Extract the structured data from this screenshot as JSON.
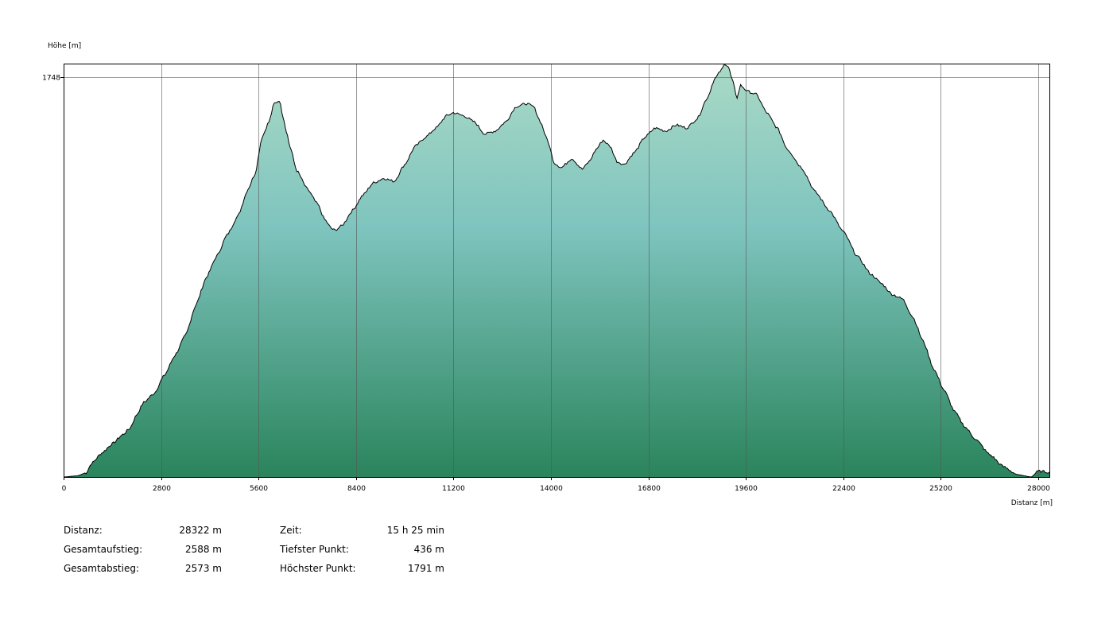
{
  "chart_data": {
    "type": "area",
    "ylabel": "Höhe [m]",
    "xlabel": "Distanz [m]",
    "xlim": [
      0,
      28322
    ],
    "ylim": [
      436,
      1791
    ],
    "x_ticks": [
      0,
      2800,
      5600,
      8400,
      11200,
      14000,
      16800,
      19600,
      22400,
      25200,
      28000
    ],
    "y_ticks": [
      1748
    ],
    "grid": true,
    "fill_colors": {
      "top": "#a9d9c6",
      "middle": "#7ec4be",
      "bottom": "#2a845c"
    },
    "line_color": "#000000",
    "grid_color": "#555555",
    "series": [
      {
        "x": [
          0,
          400,
          650,
          800,
          1100,
          1400,
          1700,
          1900,
          2100,
          2300,
          2600,
          2900,
          3200,
          3500,
          3800,
          4100,
          4400,
          4700,
          5000,
          5300,
          5500,
          5700,
          5900,
          6050,
          6200,
          6300,
          6400,
          6500,
          6700,
          7000,
          7300,
          7500,
          7700,
          7800,
          8000,
          8300,
          8600,
          8900,
          9200,
          9500,
          9800,
          10100,
          10400,
          10700,
          11000,
          11200,
          11500,
          11800,
          12100,
          12400,
          12700,
          13000,
          13300,
          13500,
          13700,
          13900,
          14100,
          14300,
          14600,
          14900,
          15100,
          15300,
          15500,
          15700,
          15900,
          16100,
          16400,
          16700,
          17000,
          17300,
          17600,
          17900,
          18200,
          18500,
          18700,
          18900,
          19000,
          19100,
          19200,
          19350,
          19450,
          19650,
          19900,
          20200,
          20500,
          20800,
          21200,
          21600,
          22000,
          22400,
          22800,
          23200,
          23500,
          23800,
          24100,
          24400,
          24700,
          25000,
          25300,
          25600,
          25900,
          26200,
          26600,
          27000,
          27400,
          27800,
          28000,
          28322
        ],
        "y": [
          436,
          440,
          450,
          480,
          515,
          545,
          575,
          595,
          640,
          680,
          710,
          770,
          835,
          900,
          1000,
          1090,
          1160,
          1230,
          1290,
          1380,
          1430,
          1550,
          1600,
          1660,
          1670,
          1620,
          1570,
          1520,
          1440,
          1380,
          1330,
          1280,
          1250,
          1245,
          1260,
          1310,
          1360,
          1400,
          1415,
          1405,
          1460,
          1520,
          1550,
          1580,
          1620,
          1630,
          1620,
          1600,
          1560,
          1570,
          1600,
          1650,
          1660,
          1650,
          1600,
          1540,
          1465,
          1450,
          1480,
          1445,
          1470,
          1510,
          1540,
          1520,
          1470,
          1460,
          1500,
          1550,
          1580,
          1570,
          1590,
          1580,
          1610,
          1680,
          1740,
          1770,
          1791,
          1780,
          1740,
          1680,
          1720,
          1700,
          1690,
          1630,
          1580,
          1510,
          1450,
          1370,
          1310,
          1240,
          1160,
          1100,
          1070,
          1035,
          1020,
          960,
          880,
          790,
          720,
          650,
          600,
          560,
          510,
          470,
          444,
          436,
          455,
          452
        ]
      }
    ]
  },
  "stats": {
    "left": [
      {
        "label": "Distanz:",
        "value": "28322 m"
      },
      {
        "label": "Gesamtaufstieg:",
        "value": "2588 m"
      },
      {
        "label": "Gesamtabstieg:",
        "value": "2573 m"
      }
    ],
    "right": [
      {
        "label": "Zeit:",
        "value": "15 h 25 min"
      },
      {
        "label": "Tiefster Punkt:",
        "value": "436 m"
      },
      {
        "label": "Höchster Punkt:",
        "value": "1791 m"
      }
    ]
  }
}
